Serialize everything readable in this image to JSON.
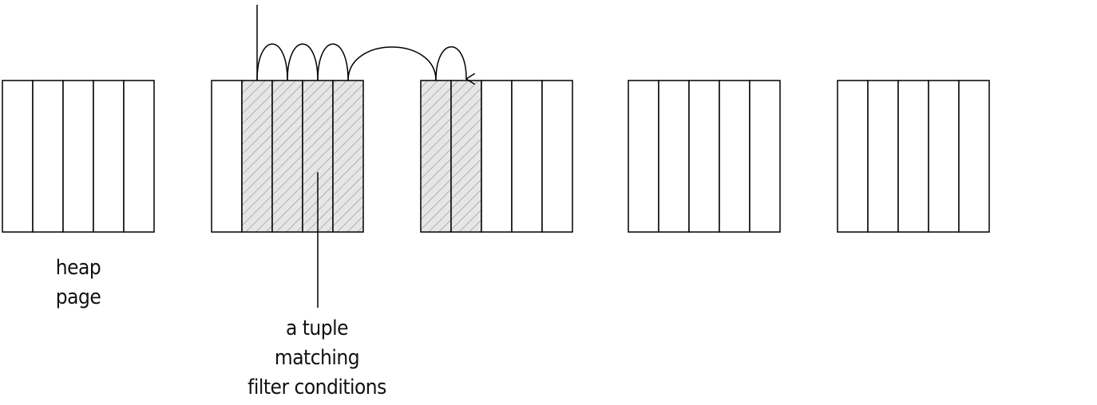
{
  "labels": {
    "heap_page": [
      "heap",
      "page"
    ],
    "matching_tuple": [
      "a tuple",
      "matching",
      "filter conditions"
    ]
  },
  "pages": [
    {
      "cells": 5,
      "matched": []
    },
    {
      "cells": 5,
      "matched": [
        1,
        2,
        3,
        4
      ]
    },
    {
      "cells": 5,
      "matched": [
        0,
        1
      ]
    },
    {
      "cells": 5,
      "matched": []
    },
    {
      "cells": 5,
      "matched": []
    }
  ],
  "colors": {
    "outline": "#000000",
    "hatch_background": "#e6e6e6",
    "hatch_stripe": "#9a9a9a"
  }
}
